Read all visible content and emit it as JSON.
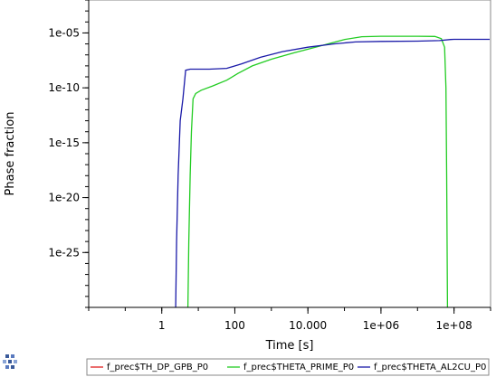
{
  "chart_data": {
    "type": "line",
    "xlabel": "Time [s]",
    "ylabel": "Phase fraction",
    "x_scale": "log",
    "y_scale": "log",
    "xlim": [
      0.01,
      1000000000.0
    ],
    "ylim": [
      1e-30,
      0.01
    ],
    "x_tick_values": [
      1,
      100,
      10000,
      1000000,
      100000000
    ],
    "x_tick_labels": [
      "1",
      "100",
      "10.000",
      "1e+06",
      "1e+08"
    ],
    "y_tick_values": [
      1e-05,
      1e-10,
      1e-15,
      1e-20,
      1e-25
    ],
    "y_tick_labels": [
      "1e-05",
      "1e-10",
      "1e-15",
      "1e-20",
      "1e-25"
    ],
    "grid": false,
    "legend_position": "bottom",
    "series": [
      {
        "name": "f_prec$TH_DP_GPB_P0",
        "color": "#e02020",
        "points": []
      },
      {
        "name": "f_prec$THETA_PRIME_P0",
        "color": "#22cc22",
        "points": [
          [
            5.2,
            1e-30
          ],
          [
            5.5,
            1e-24
          ],
          [
            6.0,
            1e-18
          ],
          [
            6.5,
            1e-14
          ],
          [
            7.2,
            1e-11
          ],
          [
            8.5,
            3e-11
          ],
          [
            12,
            6e-11
          ],
          [
            25,
            1.5e-10
          ],
          [
            60,
            5e-10
          ],
          [
            120,
            2e-09
          ],
          [
            300,
            1e-08
          ],
          [
            1000,
            4e-08
          ],
          [
            4000,
            1.5e-07
          ],
          [
            20000,
            6e-07
          ],
          [
            100000,
            2.5e-06
          ],
          [
            300000,
            4.5e-06
          ],
          [
            1000000,
            5e-06
          ],
          [
            10000000,
            5e-06
          ],
          [
            30000000,
            4.8e-06
          ],
          [
            45000000,
            3e-06
          ],
          [
            55000000,
            5e-07
          ],
          [
            60000000,
            1e-10
          ],
          [
            63000000,
            1e-18
          ],
          [
            66000000,
            1e-30
          ]
        ]
      },
      {
        "name": "f_prec$THETA_AL2CU_P0",
        "color": "#1a1aa8",
        "points": [
          [
            2.4,
            1e-30
          ],
          [
            2.55,
            1e-24
          ],
          [
            2.8,
            1e-18
          ],
          [
            3.2,
            1e-13
          ],
          [
            3.8,
            1e-11
          ],
          [
            4.5,
            4e-09
          ],
          [
            6,
            5e-09
          ],
          [
            20,
            5e-09
          ],
          [
            60,
            6e-09
          ],
          [
            150,
            1.5e-08
          ],
          [
            500,
            6e-08
          ],
          [
            2000,
            2e-07
          ],
          [
            10000,
            5e-07
          ],
          [
            50000,
            1e-06
          ],
          [
            200000,
            1.5e-06
          ],
          [
            1000000,
            1.7e-06
          ],
          [
            10000000,
            1.8e-06
          ],
          [
            40000000,
            2e-06
          ],
          [
            80000000,
            2.5e-06
          ],
          [
            100000000,
            2.6e-06
          ],
          [
            1000000000,
            2.6e-06
          ]
        ]
      }
    ]
  }
}
